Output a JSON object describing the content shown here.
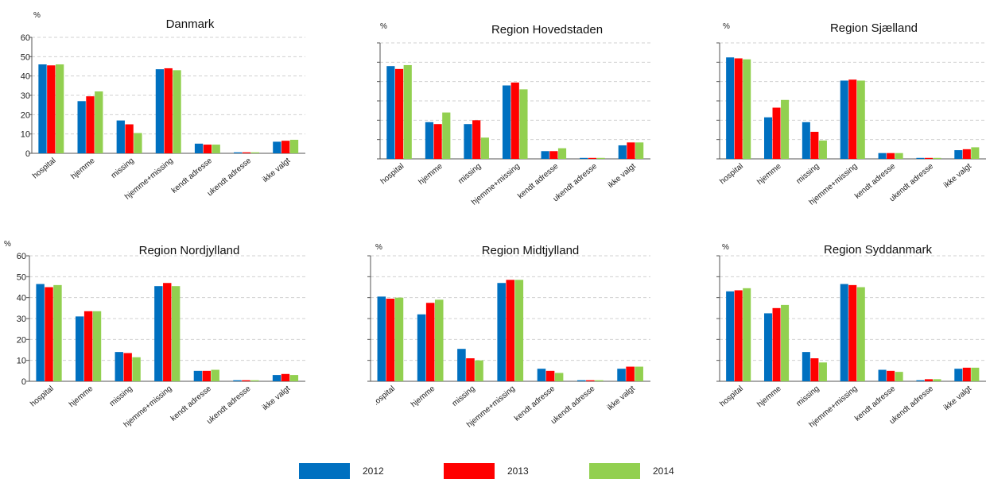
{
  "series_colors": {
    "2012": "#0070C0",
    "2013": "#FF0000",
    "2014": "#92D050"
  },
  "chart_data": [
    {
      "type": "bar",
      "title": "Danmark",
      "ylabel": "%",
      "ylim": [
        0,
        60
      ],
      "yticks": [
        0,
        10,
        20,
        30,
        40,
        50,
        60
      ],
      "show_ytick_labels": true,
      "grid": true,
      "categories": [
        "hospital",
        "hjemme",
        "missing",
        "hjemme+missing",
        "kendt adresse",
        "ukendt adresse",
        "ikke valgt"
      ],
      "series": [
        {
          "name": "2012",
          "values": [
            46,
            27,
            17,
            43.5,
            5,
            0.5,
            6
          ]
        },
        {
          "name": "2013",
          "values": [
            45.5,
            29.5,
            15,
            44,
            4.5,
            0.5,
            6.5
          ]
        },
        {
          "name": "2014",
          "values": [
            46,
            32,
            10.5,
            43,
            4.5,
            0.5,
            7
          ]
        }
      ]
    },
    {
      "type": "bar",
      "title": "Region Hovedstaden",
      "ylabel": "%",
      "ylim": [
        0,
        60
      ],
      "yticks": [
        0,
        10,
        20,
        30,
        40,
        50,
        60
      ],
      "show_ytick_labels": false,
      "grid": true,
      "categories": [
        "hospital",
        "hjemme",
        "missing",
        "hjemme+missing",
        "kendt adresse",
        "ukendt adresse",
        "ikke valgt"
      ],
      "series": [
        {
          "name": "2012",
          "values": [
            48,
            19,
            18,
            38,
            4,
            0.5,
            7
          ]
        },
        {
          "name": "2013",
          "values": [
            46.5,
            18,
            20,
            39.5,
            4,
            0.5,
            8.5
          ]
        },
        {
          "name": "2014",
          "values": [
            48.5,
            24,
            11,
            36,
            5.5,
            0.5,
            8.5
          ]
        }
      ]
    },
    {
      "type": "bar",
      "title": "Region Sjælland",
      "ylabel": "%",
      "ylim": [
        0,
        60
      ],
      "yticks": [
        0,
        10,
        20,
        30,
        40,
        50,
        60
      ],
      "show_ytick_labels": false,
      "grid": true,
      "categories": [
        "hospital",
        "hjemme",
        "missing",
        "hjemme+missing",
        "kendt adresse",
        "ukendt adresse",
        "ikke valgt"
      ],
      "series": [
        {
          "name": "2012",
          "values": [
            52.5,
            21.5,
            19,
            40.5,
            3,
            0.5,
            4.5
          ]
        },
        {
          "name": "2013",
          "values": [
            52,
            26.5,
            14,
            41,
            3,
            0.5,
            5
          ]
        },
        {
          "name": "2014",
          "values": [
            51.5,
            30.5,
            9.5,
            40.5,
            3,
            0.5,
            6
          ]
        }
      ]
    },
    {
      "type": "bar",
      "title": "Region Nordjylland",
      "ylabel": "%",
      "ylim": [
        0,
        60
      ],
      "yticks": [
        0,
        10,
        20,
        30,
        40,
        50,
        60
      ],
      "show_ytick_labels": true,
      "grid": true,
      "categories": [
        "hospital",
        "hjemme",
        "missing",
        "hjemme+missing",
        "kendt adresse",
        "ukendt adresse",
        "ikke valgt"
      ],
      "series": [
        {
          "name": "2012",
          "values": [
            46.5,
            31,
            14,
            45.5,
            5,
            0.5,
            3
          ]
        },
        {
          "name": "2013",
          "values": [
            45,
            33.5,
            13.5,
            47,
            5,
            0.5,
            3.5
          ]
        },
        {
          "name": "2014",
          "values": [
            46,
            33.5,
            11.5,
            45.5,
            5.5,
            0.5,
            3
          ]
        }
      ]
    },
    {
      "type": "bar",
      "title": "Region Midtjylland",
      "ylabel": "%",
      "ylim": [
        0,
        60
      ],
      "yticks": [
        0,
        10,
        20,
        30,
        40,
        50,
        60
      ],
      "show_ytick_labels": false,
      "grid": true,
      "categories": [
        ".ospital",
        "hjemme",
        "missing",
        "hjemme+missing",
        "kendt adresse",
        "ukendt adresse",
        "ikke valgt"
      ],
      "series": [
        {
          "name": "2012",
          "values": [
            40.5,
            32,
            15.5,
            47,
            6,
            0.5,
            6
          ]
        },
        {
          "name": "2013",
          "values": [
            39.5,
            37.5,
            11,
            48.5,
            5,
            0.5,
            7
          ]
        },
        {
          "name": "2014",
          "values": [
            40,
            39,
            10,
            48.5,
            4,
            0.5,
            7
          ]
        }
      ]
    },
    {
      "type": "bar",
      "title": "Region Syddanmark",
      "ylabel": "%",
      "ylim": [
        0,
        60
      ],
      "yticks": [
        0,
        10,
        20,
        30,
        40,
        50,
        60
      ],
      "show_ytick_labels": false,
      "grid": true,
      "categories": [
        "hospital",
        "hjemme",
        "missing",
        "hjemme+missing",
        "kendt adresse",
        "ukendt adresse",
        "ikke valgt"
      ],
      "series": [
        {
          "name": "2012",
          "values": [
            43,
            32.5,
            14,
            46.5,
            5.5,
            0.5,
            6
          ]
        },
        {
          "name": "2013",
          "values": [
            43.5,
            35,
            11,
            46,
            5,
            1,
            6.5
          ]
        },
        {
          "name": "2014",
          "values": [
            44.5,
            36.5,
            9,
            45,
            4.5,
            1,
            6.5
          ]
        }
      ]
    }
  ],
  "legend": [
    {
      "label": "2012",
      "color": "#0070C0"
    },
    {
      "label": "2013",
      "color": "#FF0000"
    },
    {
      "label": "2014",
      "color": "#92D050"
    }
  ]
}
